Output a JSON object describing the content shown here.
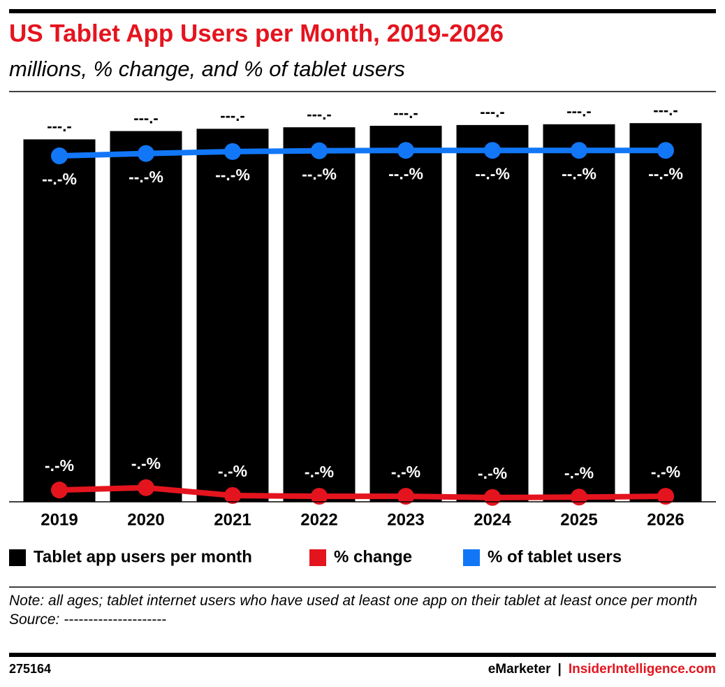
{
  "chart_data": {
    "type": "bar",
    "title": "US Tablet App Users per Month, 2019-2026",
    "subtitle": "millions, % change, and % of tablet users",
    "categories": [
      "2019",
      "2020",
      "2021",
      "2022",
      "2023",
      "2024",
      "2025",
      "2026"
    ],
    "series": [
      {
        "name": "Tablet app users per month",
        "color": "#000000",
        "values": [
          96.0,
          98.2,
          98.8,
          99.2,
          99.6,
          99.8,
          100.0,
          100.3
        ],
        "value_labels": [
          "---.-",
          "---.-",
          "---.-",
          "---.-",
          "---.-",
          "---.-",
          "---.-",
          "---.-"
        ]
      },
      {
        "name": "% change",
        "color": "#e4141e",
        "type": "line",
        "axis": "y2",
        "values": [
          3.0,
          3.6,
          1.6,
          1.4,
          1.4,
          1.1,
          1.2,
          1.4
        ],
        "value_labels": [
          "-.-%",
          "-.-%",
          "-.-%",
          "-.-%",
          "-.-%",
          "-.-%",
          "-.-%",
          "-.-%"
        ]
      },
      {
        "name": "% of tablet users",
        "color": "#1177f7",
        "type": "line",
        "axis": "y2",
        "values": [
          88.2,
          88.8,
          89.3,
          89.5,
          89.6,
          89.6,
          89.6,
          89.6
        ],
        "value_labels": [
          "--.-%",
          "--.-%",
          "--.-%",
          "--.-%",
          "--.-%",
          "--.-%",
          "--.-%",
          "--.-%"
        ]
      }
    ],
    "ylim": [
      0,
      107
    ],
    "y2lim": [
      0,
      103
    ],
    "legend": "bottom",
    "note": "Note: all ages; tablet internet users who have used at least one app on their tablet at least once per month",
    "source": "Source: ---------------------",
    "id": "275164",
    "brand": "eMarketer",
    "separator": "|",
    "brand2": "InsiderIntelligence.com"
  }
}
